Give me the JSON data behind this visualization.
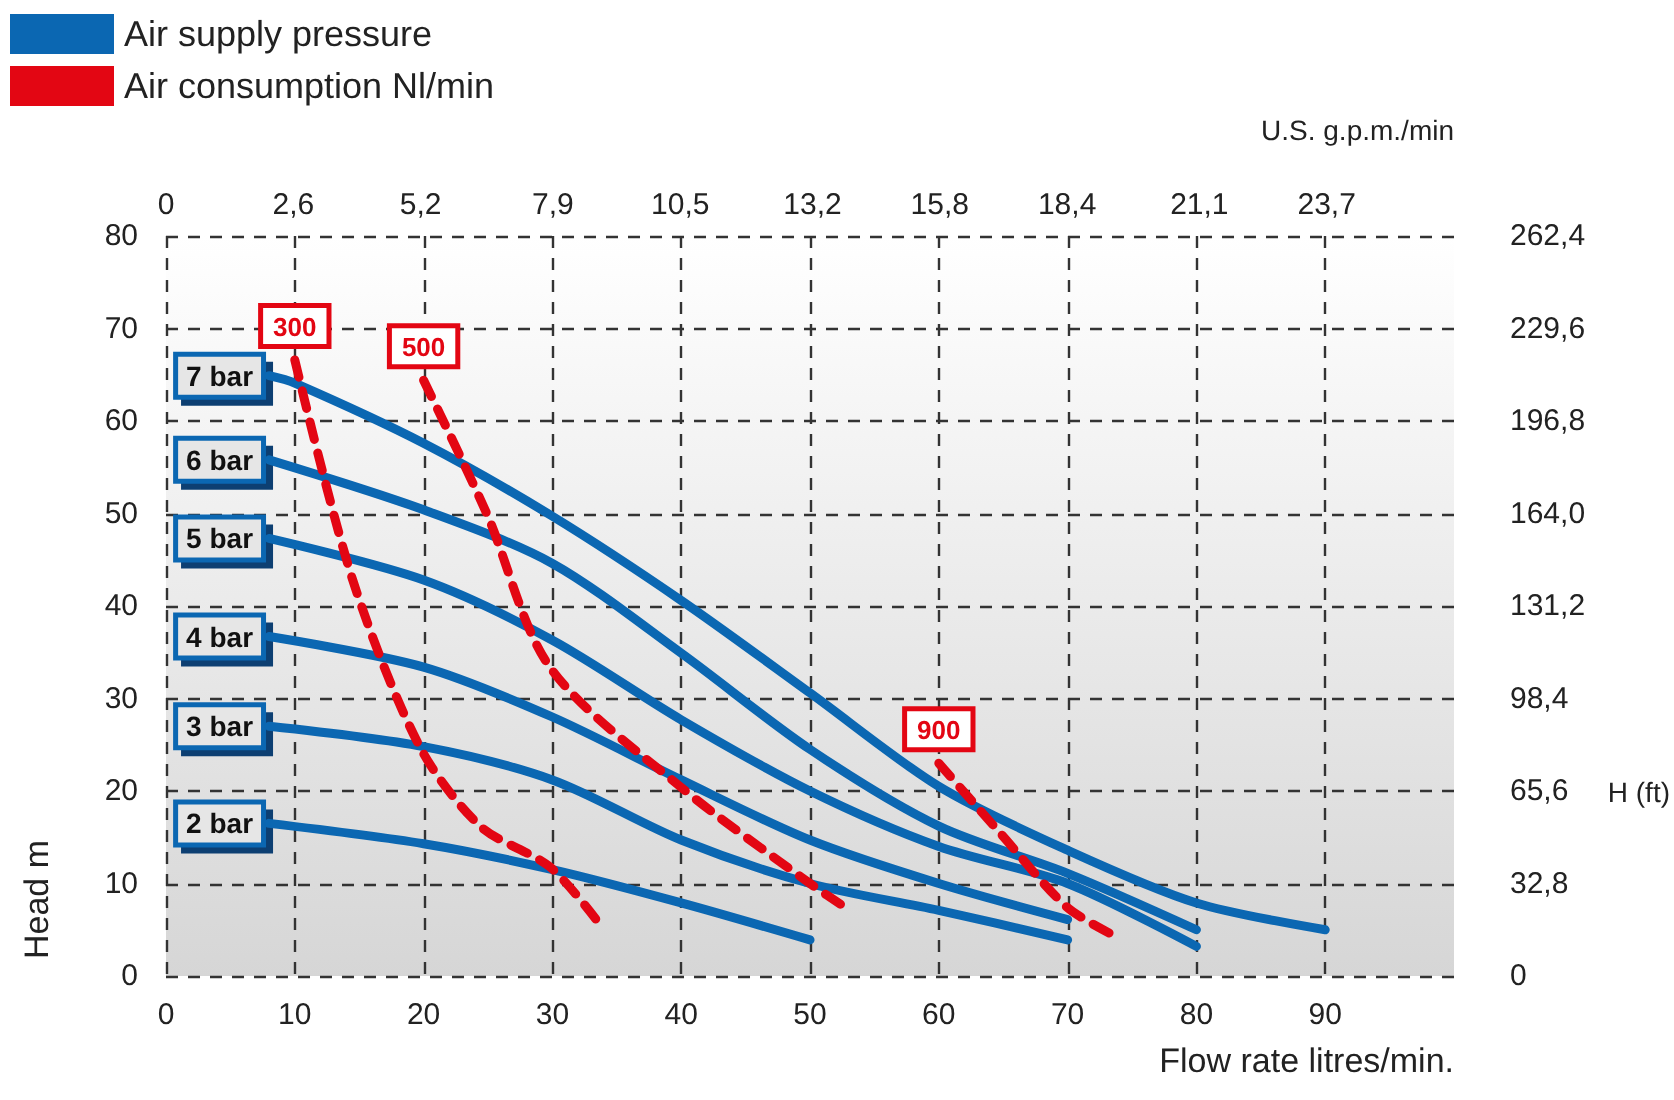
{
  "chart_data": {
    "type": "line",
    "xlabel": "Flow rate litres/min.",
    "ylabel": "Head m",
    "x2label": "U.S. g.p.m./min",
    "y2label": "H (ft)",
    "xlim": [
      0,
      100
    ],
    "xticks": [
      0,
      10,
      20,
      30,
      40,
      50,
      60,
      70,
      80,
      90
    ],
    "ylim": [
      0,
      80
    ],
    "yticks": [
      0,
      10,
      20,
      30,
      40,
      50,
      60,
      70,
      80
    ],
    "x2lim": [
      0,
      26.3
    ],
    "x2ticks": [
      0,
      {
        "value": 2.6,
        "label": "2,6"
      },
      {
        "value": 5.2,
        "label": "5,2"
      },
      {
        "value": 7.9,
        "label": "7,9"
      },
      {
        "value": 10.5,
        "label": "10,5"
      },
      {
        "value": 13.2,
        "label": "13,2"
      },
      {
        "value": 15.8,
        "label": "15,8"
      },
      {
        "value": 18.4,
        "label": "18,4"
      },
      {
        "value": 21.1,
        "label": "21,1"
      },
      {
        "value": 23.7,
        "label": "23,7"
      }
    ],
    "y2lim": [
      0,
      262.4
    ],
    "y2ticks": [
      0,
      {
        "value": 32.8,
        "label": "32,8"
      },
      {
        "value": 65.6,
        "label": "65,6"
      },
      {
        "value": 98.4,
        "label": "98,4"
      },
      {
        "value": 131.2,
        "label": "131,2"
      },
      {
        "value": 164,
        "label": "164,0"
      },
      {
        "value": 196.8,
        "label": "196,8"
      },
      {
        "value": 229.6,
        "label": "229,6"
      },
      {
        "value": 262.4,
        "label": "262,4"
      }
    ],
    "grid": true,
    "legend": "top left",
    "series": [
      {
        "name": "Air supply pressure",
        "color": "#0b67b2",
        "x": [
          8,
          10,
          20,
          30,
          40,
          50,
          60,
          70,
          80,
          90
        ],
        "values": [
          64.9,
          64.1,
          57.6,
          49.7,
          40.6,
          30.6,
          20.5,
          13.6,
          7.9,
          5.0
        ]
      },
      {
        "color": "#0b67b2",
        "x": [
          8,
          20,
          30,
          40,
          50,
          60,
          70,
          80
        ],
        "values": [
          55.8,
          50.4,
          44.6,
          34.9,
          24.5,
          16.2,
          11.1,
          5.0
        ]
      },
      {
        "color": "#0b67b2",
        "x": [
          8,
          20,
          30,
          40,
          50,
          60,
          70,
          80
        ],
        "values": [
          47.3,
          42.8,
          36.3,
          27.7,
          20.0,
          14.0,
          10.0,
          3.2
        ]
      },
      {
        "color": "#0b67b2",
        "x": [
          8,
          20,
          30,
          40,
          50,
          60,
          70
        ],
        "values": [
          36.7,
          33.4,
          28.0,
          21.2,
          14.7,
          10.0,
          6.1
        ]
      },
      {
        "color": "#0b67b2",
        "x": [
          8,
          20,
          30,
          40,
          50,
          60,
          70
        ],
        "values": [
          27.0,
          24.8,
          21.2,
          14.7,
          10.0,
          7.1,
          3.9
        ]
      },
      {
        "color": "#0b67b2",
        "x": [
          8,
          20,
          30,
          40,
          50
        ],
        "values": [
          16.5,
          14.3,
          11.5,
          7.9,
          3.9
        ]
      },
      {
        "name": "Air consumption Nl/min",
        "color": "#e30613",
        "line_style": "dashed",
        "x": [
          10,
          14.5,
          19.7,
          24.4,
          29.8,
          33.4
        ],
        "values": [
          66.6,
          42.8,
          24.8,
          16.2,
          11.8,
          6.1
        ]
      },
      {
        "color": "#e30613",
        "line_style": "dashed",
        "x": [
          20,
          24.9,
          29.8,
          39.9,
          50,
          53.1
        ],
        "values": [
          64.4,
          50.0,
          33.4,
          20.5,
          10.0,
          7.1
        ]
      },
      {
        "color": "#e30613",
        "line_style": "dashed",
        "x": [
          60,
          64.8,
          69.9,
          73.3
        ],
        "values": [
          23.0,
          15.4,
          7.5,
          4.6
        ]
      }
    ],
    "annotations": [
      {
        "text": "7 bar",
        "x": 8,
        "y": 64.9
      },
      {
        "text": "6 bar",
        "x": 8,
        "y": 55.8
      },
      {
        "text": "5 bar",
        "x": 8,
        "y": 47.3
      },
      {
        "text": "4 bar",
        "x": 8,
        "y": 36.7
      },
      {
        "text": "3 bar",
        "x": 8,
        "y": 27.0
      },
      {
        "text": "2 bar",
        "x": 8,
        "y": 16.5
      },
      {
        "text": "300",
        "x": 10,
        "y": 66.6
      },
      {
        "text": "500",
        "x": 20,
        "y": 64.4
      },
      {
        "text": "900",
        "x": 60,
        "y": 23.0
      }
    ]
  }
}
